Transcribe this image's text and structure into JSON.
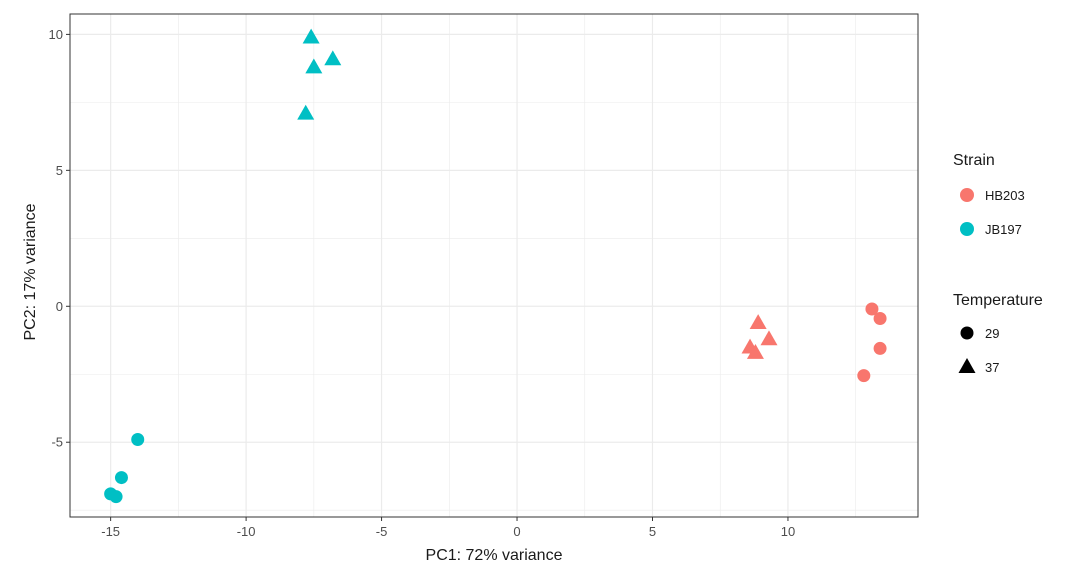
{
  "chart_data": {
    "type": "scatter",
    "title": "",
    "xlabel": "PC1: 72% variance",
    "ylabel": "PC2: 17% variance",
    "xlim": [
      -16.5,
      14.8
    ],
    "ylim": [
      -7.75,
      10.75
    ],
    "x_ticks": [
      -15,
      -10,
      -5,
      0,
      5,
      10
    ],
    "x_tick_labels": [
      "-15",
      "-10",
      "-5",
      "0",
      "5",
      "10"
    ],
    "y_ticks": [
      -5,
      0,
      5,
      10
    ],
    "y_tick_labels": [
      "-5",
      "0",
      "5",
      "10"
    ],
    "grid": true,
    "legend_position": "right",
    "legends": {
      "color": {
        "title": "Strain",
        "entries": [
          {
            "label": "HB203",
            "color": "#F8766D"
          },
          {
            "label": "JB197",
            "color": "#00BFC4"
          }
        ]
      },
      "shape": {
        "title": "Temperature",
        "entries": [
          {
            "label": "29",
            "shape": "circle"
          },
          {
            "label": "37",
            "shape": "triangle"
          }
        ]
      }
    },
    "points": [
      {
        "x": -7.6,
        "y": 9.9,
        "strain": "JB197",
        "temperature": "37"
      },
      {
        "x": -6.8,
        "y": 9.1,
        "strain": "JB197",
        "temperature": "37"
      },
      {
        "x": -7.5,
        "y": 8.8,
        "strain": "JB197",
        "temperature": "37"
      },
      {
        "x": -7.8,
        "y": 7.1,
        "strain": "JB197",
        "temperature": "37"
      },
      {
        "x": -14.0,
        "y": -4.9,
        "strain": "JB197",
        "temperature": "29"
      },
      {
        "x": -14.6,
        "y": -6.3,
        "strain": "JB197",
        "temperature": "29"
      },
      {
        "x": -15.0,
        "y": -6.9,
        "strain": "JB197",
        "temperature": "29"
      },
      {
        "x": -14.8,
        "y": -7.0,
        "strain": "JB197",
        "temperature": "29"
      },
      {
        "x": 8.9,
        "y": -0.6,
        "strain": "HB203",
        "temperature": "37"
      },
      {
        "x": 9.3,
        "y": -1.2,
        "strain": "HB203",
        "temperature": "37"
      },
      {
        "x": 8.6,
        "y": -1.5,
        "strain": "HB203",
        "temperature": "37"
      },
      {
        "x": 8.8,
        "y": -1.7,
        "strain": "HB203",
        "temperature": "37"
      },
      {
        "x": 13.1,
        "y": -0.1,
        "strain": "HB203",
        "temperature": "29"
      },
      {
        "x": 13.4,
        "y": -0.45,
        "strain": "HB203",
        "temperature": "29"
      },
      {
        "x": 13.4,
        "y": -1.55,
        "strain": "HB203",
        "temperature": "29"
      },
      {
        "x": 12.8,
        "y": -2.55,
        "strain": "HB203",
        "temperature": "29"
      }
    ]
  }
}
